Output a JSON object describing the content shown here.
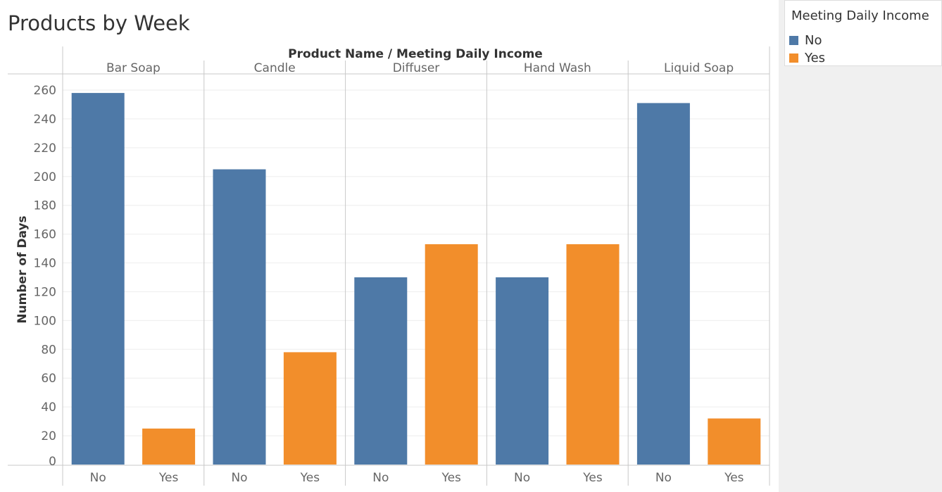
{
  "title": "Products by Week",
  "legend": {
    "title": "Meeting Daily Income",
    "items": [
      {
        "label": "No",
        "color": "#4e79a7"
      },
      {
        "label": "Yes",
        "color": "#f28e2b"
      }
    ]
  },
  "chart_data": {
    "type": "bar",
    "header": "Product Name  /  Meeting Daily Income",
    "ylabel": "Number of Days",
    "ylim": [
      0,
      260
    ],
    "yticks": [
      0,
      20,
      40,
      60,
      80,
      100,
      120,
      140,
      160,
      180,
      200,
      220,
      240,
      260
    ],
    "grid": true,
    "legend_position": "top-right",
    "categories": [
      "Bar Soap",
      "Candle",
      "Diffuser",
      "Hand Wash",
      "Liquid Soap"
    ],
    "subcategories": [
      "No",
      "Yes"
    ],
    "series": [
      {
        "name": "No",
        "color": "#4e79a7",
        "values": [
          258,
          205,
          130,
          130,
          251
        ]
      },
      {
        "name": "Yes",
        "color": "#f28e2b",
        "values": [
          25,
          78,
          153,
          153,
          32
        ]
      }
    ]
  }
}
